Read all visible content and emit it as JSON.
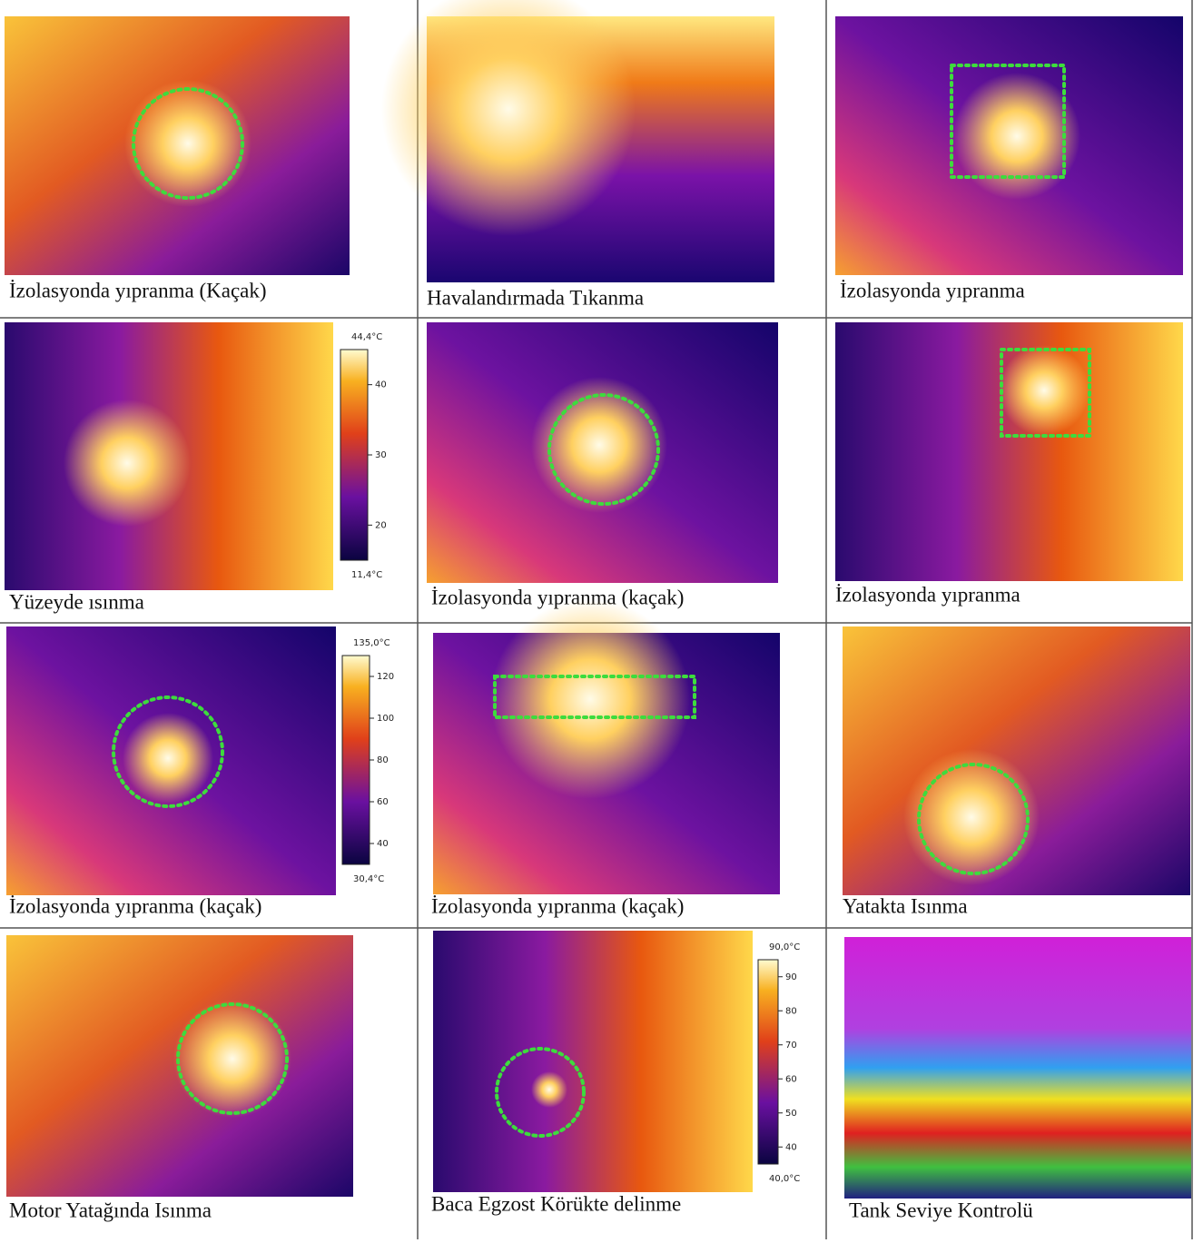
{
  "cells": [
    {
      "caption": "İzolasyonda yıpranma (Kaçak)"
    },
    {
      "caption": "Havalandırmada Tıkanma"
    },
    {
      "caption": "İzolasyonda yıpranma"
    },
    {
      "caption": "Yüzeyde ısınma",
      "scale": {
        "max": "44,4°C",
        "ticks": [
          "40",
          "30",
          "20"
        ],
        "min": "11,4°C"
      }
    },
    {
      "caption": "İzolasyonda yıpranma (kaçak)"
    },
    {
      "caption": "İzolasyonda yıpranma"
    },
    {
      "caption": "İzolasyonda yıpranma (kaçak)",
      "scale": {
        "max": "135,0°C",
        "ticks": [
          "120",
          "100",
          "80",
          "60",
          "40"
        ],
        "min": "30,4°C"
      }
    },
    {
      "caption": "İzolasyonda yıpranma (kaçak)"
    },
    {
      "caption": "Yatakta Isınma"
    },
    {
      "caption": "Motor Yatağında Isınma"
    },
    {
      "caption": "Baca Egzost Körükte delinme",
      "scale": {
        "max": "90,0°C",
        "ticks": [
          "90",
          "80",
          "70",
          "60",
          "50",
          "40"
        ],
        "min": "40,0°C"
      }
    },
    {
      "caption": "Tank Seviye Kontrolü"
    }
  ]
}
